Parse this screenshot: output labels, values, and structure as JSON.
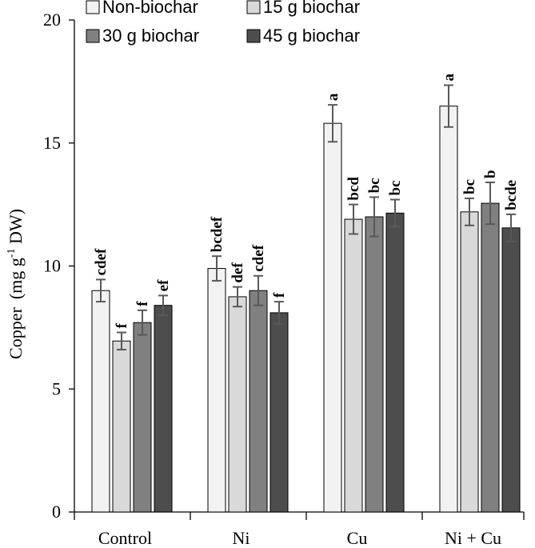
{
  "chart_data": {
    "type": "bar",
    "title": "",
    "xlabel": "",
    "ylabel": "Copper",
    "ylabel_unit_parts": [
      "(mg g",
      "-1",
      " DW)"
    ],
    "ylim": [
      0,
      20
    ],
    "yticks": [
      0,
      5,
      10,
      15,
      20
    ],
    "grid": false,
    "legend_position": "top-left",
    "categories": [
      "Control",
      "Ni",
      "Cu",
      "Ni + Cu"
    ],
    "series": [
      {
        "name": "Non-biochar",
        "color": "#f2f2f2",
        "values": [
          9.0,
          9.9,
          15.8,
          16.5
        ],
        "errors": [
          0.45,
          0.5,
          0.75,
          0.85
        ],
        "labels": [
          "cdef",
          "bcdef",
          "a",
          "a"
        ]
      },
      {
        "name": "15 g biochar",
        "color": "#d9d9d9",
        "values": [
          6.95,
          8.75,
          11.9,
          12.2
        ],
        "errors": [
          0.35,
          0.4,
          0.6,
          0.55
        ],
        "labels": [
          "f",
          "def",
          "bcd",
          "bc"
        ]
      },
      {
        "name": "30 g biochar",
        "color": "#808080",
        "values": [
          7.7,
          9.0,
          12.0,
          12.55
        ],
        "errors": [
          0.5,
          0.6,
          0.8,
          0.85
        ],
        "labels": [
          "f",
          "cdef",
          "bc",
          "b"
        ]
      },
      {
        "name": "45 g biochar",
        "color": "#4d4d4d",
        "values": [
          8.4,
          8.1,
          12.15,
          11.55
        ],
        "errors": [
          0.4,
          0.45,
          0.55,
          0.55
        ],
        "labels": [
          "ef",
          "f",
          "bc",
          "bcde"
        ]
      }
    ]
  }
}
